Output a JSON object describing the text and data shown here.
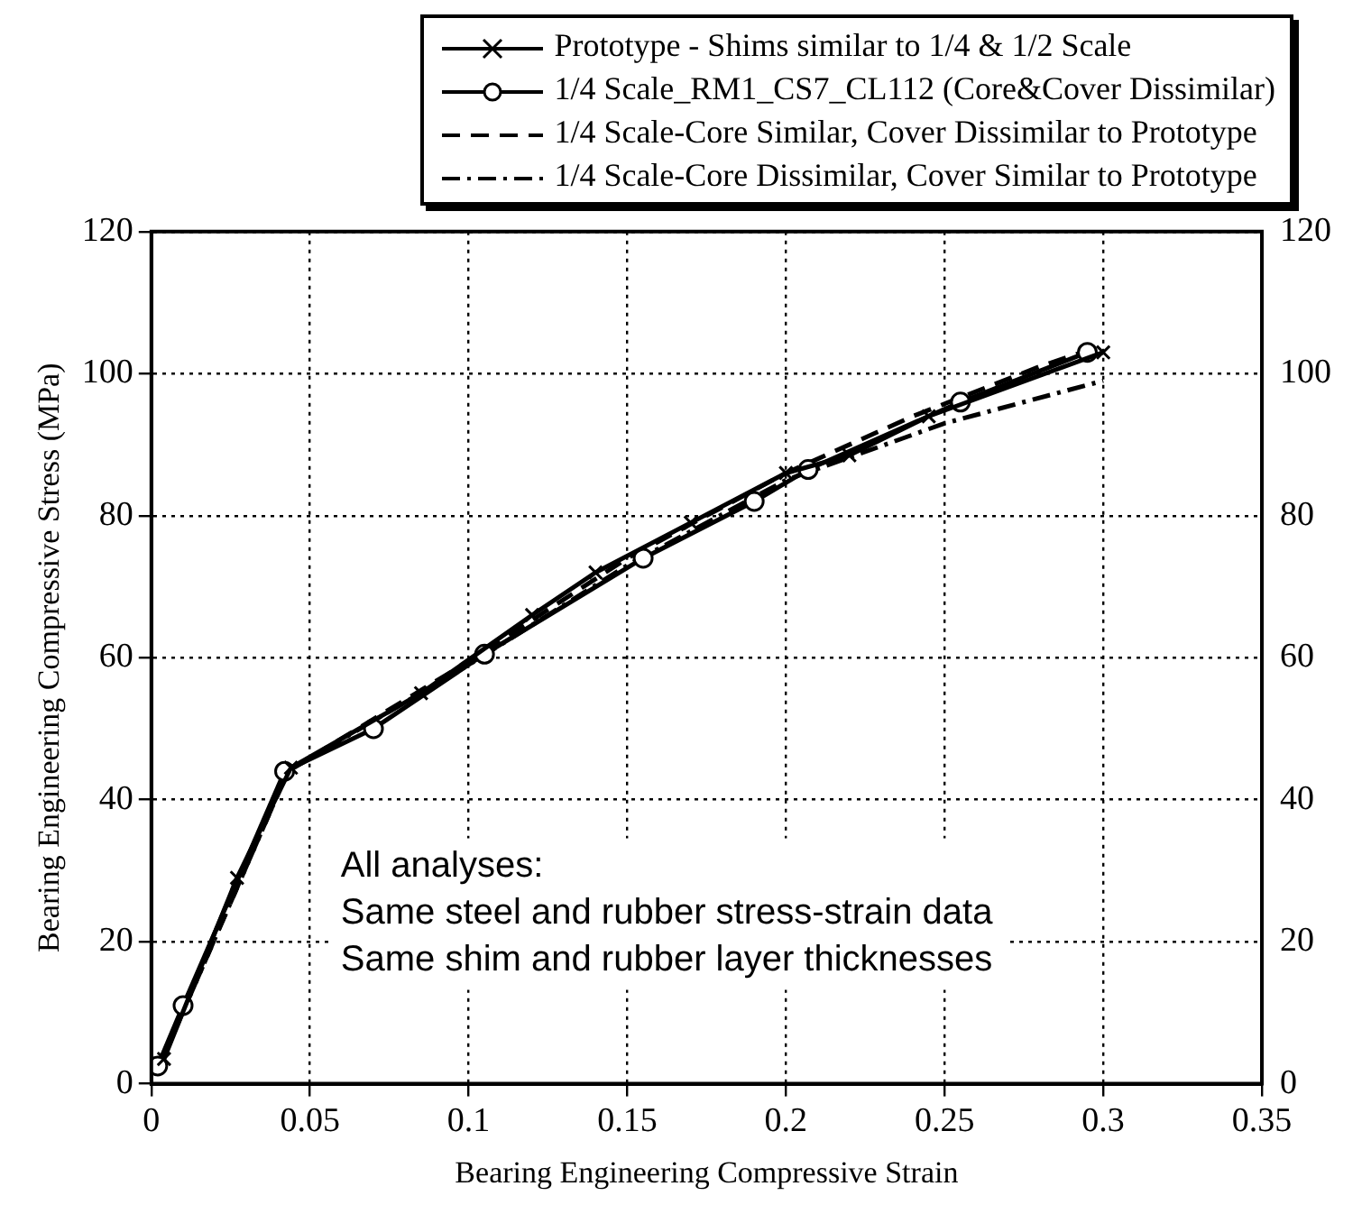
{
  "chart_data": {
    "type": "line",
    "xlabel": "Bearing Engineering Compressive Strain",
    "ylabel": "Bearing Engineering Compressive Stress (MPa)",
    "annotations": [
      "All analyses:",
      "Same steel and rubber stress-strain data",
      "Same shim and rubber layer thicknesses"
    ],
    "series": [
      {
        "name": "Prototype - Shims similar to 1/4 & 1/2 Scale",
        "color": "#000000",
        "marker": "cross",
        "line_style": "solid",
        "x": [
          0.004,
          0.027,
          0.044,
          0.085,
          0.12,
          0.14,
          0.17,
          0.2,
          0.22,
          0.245,
          0.3
        ],
        "values": [
          3.5,
          29,
          44.5,
          55,
          66,
          72,
          79,
          86,
          88.5,
          94,
          103
        ]
      },
      {
        "name": "1/4 Scale_RM1_CS7_CL112 (Core&Cover Dissimilar)",
        "color": "#000000",
        "marker": "circle",
        "line_style": "solid",
        "x": [
          0.002,
          0.01,
          0.042,
          0.07,
          0.105,
          0.155,
          0.19,
          0.207,
          0.255,
          0.295
        ],
        "values": [
          2.5,
          11,
          44,
          50,
          60.5,
          74,
          82,
          86.5,
          96,
          103
        ]
      },
      {
        "name": "1/4 Scale-Core Similar, Cover Dissimilar to Prototype",
        "color": "#000000",
        "marker": "none",
        "line_style": "dashed",
        "x": [
          0.003,
          0.043,
          0.1,
          0.15,
          0.2,
          0.24,
          0.28,
          0.3
        ],
        "values": [
          3,
          44,
          59.5,
          74,
          86,
          94,
          101,
          104
        ]
      },
      {
        "name": "1/4 Scale-Core Dissimilar, Cover Similar to Prototype",
        "color": "#000000",
        "marker": "none",
        "line_style": "dashdot",
        "x": [
          0.003,
          0.043,
          0.1,
          0.15,
          0.2,
          0.25,
          0.3
        ],
        "values": [
          3,
          44,
          59,
          73,
          85,
          93,
          99
        ]
      }
    ],
    "xlim": [
      0,
      0.35
    ],
    "xticks": [
      0,
      0.05,
      0.1,
      0.15,
      0.2,
      0.25,
      0.3,
      0.35
    ],
    "ylim": [
      0,
      120
    ],
    "yticks": [
      0,
      20,
      40,
      60,
      80,
      100,
      120
    ],
    "y2lim": [
      0,
      120
    ],
    "y2ticks": [
      0,
      20,
      40,
      60,
      80,
      100,
      120
    ],
    "grid": true,
    "legend": "top"
  }
}
